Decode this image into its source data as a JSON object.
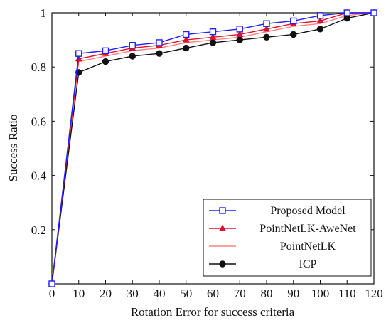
{
  "chart_data": {
    "type": "line",
    "title": "",
    "xlabel": "Rotation Error for success criteria",
    "ylabel": "Success Ratio",
    "xlim": [
      0,
      120
    ],
    "ylim": [
      0,
      1
    ],
    "x_ticks": [
      0,
      10,
      20,
      30,
      40,
      50,
      60,
      70,
      80,
      90,
      100,
      110,
      120
    ],
    "y_ticks": [
      0.2,
      0.4,
      0.6,
      0.8,
      1
    ],
    "y_tick_labels": [
      "0.2",
      "0.4",
      "0.6",
      "0.8",
      "1"
    ],
    "grid": false,
    "legend_position": "bottom-right",
    "x": [
      0,
      10,
      20,
      30,
      40,
      50,
      60,
      70,
      80,
      90,
      100,
      110,
      120
    ],
    "series": [
      {
        "name": "Proposed Model",
        "color": "#1f1fff",
        "marker": "square-open",
        "values": [
          0.0,
          0.85,
          0.86,
          0.88,
          0.89,
          0.92,
          0.93,
          0.94,
          0.96,
          0.97,
          0.99,
          1.0,
          1.0
        ]
      },
      {
        "name": "PointNetLK-AweNet",
        "color": "#e0102a",
        "marker": "triangle",
        "values": [
          0.0,
          0.83,
          0.85,
          0.87,
          0.88,
          0.9,
          0.91,
          0.92,
          0.94,
          0.96,
          0.97,
          1.0,
          1.0
        ]
      },
      {
        "name": "PointNetLK",
        "color": "#ff8080",
        "marker": "none",
        "values": [
          0.0,
          0.82,
          0.84,
          0.86,
          0.87,
          0.89,
          0.9,
          0.91,
          0.93,
          0.95,
          0.96,
          0.99,
          1.0
        ]
      },
      {
        "name": "ICP",
        "color": "#111111",
        "marker": "circle-filled",
        "values": [
          0.0,
          0.78,
          0.82,
          0.84,
          0.85,
          0.87,
          0.89,
          0.9,
          0.91,
          0.92,
          0.94,
          0.98,
          1.0
        ]
      }
    ]
  }
}
